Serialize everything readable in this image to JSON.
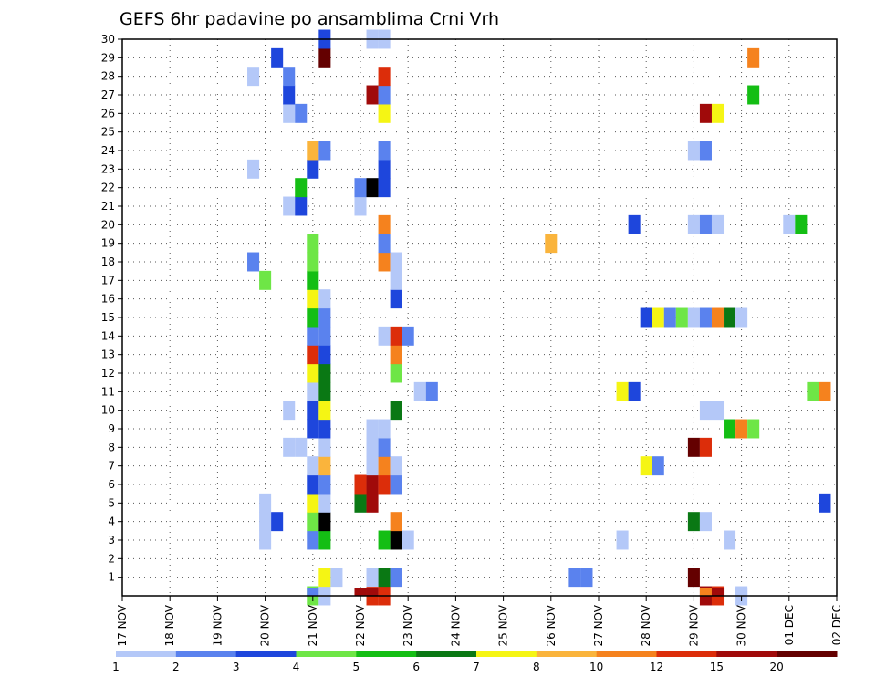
{
  "chart_data": {
    "type": "heatmap",
    "title": "GEFS 6hr padavine po ansamblima Crni Vrh",
    "xlabel": "",
    "ylabel": "",
    "x_tick_labels": [
      "17 NOV",
      "18 NOV",
      "19 NOV",
      "20 NOV",
      "21 NOV",
      "22 NOV",
      "23 NOV",
      "24 NOV",
      "25 NOV",
      "26 NOV",
      "27 NOV",
      "28 NOV",
      "29 NOV",
      "30 NOV",
      "01 DEC",
      "02 DEC"
    ],
    "x_range_days": [
      0,
      15
    ],
    "y_tick_labels": [
      "1",
      "2",
      "3",
      "4",
      "5",
      "6",
      "7",
      "8",
      "9",
      "10",
      "11",
      "12",
      "13",
      "14",
      "15",
      "16",
      "17",
      "18",
      "19",
      "20",
      "21",
      "22",
      "23",
      "24",
      "25",
      "26",
      "27",
      "28",
      "29",
      "30"
    ],
    "y_range": [
      0,
      30
    ],
    "grid": true,
    "step_hours": 6,
    "colorbar": {
      "labels": [
        "1",
        "2",
        "3",
        "4",
        "5",
        "6",
        "7",
        "8",
        "10",
        "12",
        "15",
        "20"
      ],
      "colors": [
        "#b4c8f8",
        "#5a82ee",
        "#1e46dc",
        "#6ee646",
        "#14be14",
        "#0a7814",
        "#f5f514",
        "#fab43c",
        "#f5821e",
        "#dc2d0a",
        "#a00a0a",
        "#640000"
      ]
    },
    "cells": [
      [
        0,
        4.0,
        4
      ],
      [
        0,
        4.25,
        1
      ],
      [
        0,
        5.25,
        10
      ],
      [
        0,
        5.5,
        10
      ],
      [
        0,
        12.25,
        11
      ],
      [
        0,
        12.5,
        10
      ],
      [
        0,
        13.0,
        1
      ],
      [
        1,
        4.25,
        7
      ],
      [
        1,
        4.5,
        1
      ],
      [
        1,
        5.25,
        1
      ],
      [
        1,
        5.5,
        6
      ],
      [
        1,
        5.75,
        2
      ],
      [
        1,
        9.75,
        2
      ],
      [
        1,
        9.5,
        2
      ],
      [
        1,
        12.0,
        12
      ],
      [
        3,
        3.0,
        1
      ],
      [
        3,
        4.0,
        2
      ],
      [
        3,
        4.25,
        5
      ],
      [
        3,
        5.5,
        5
      ],
      [
        3,
        5.75,
        13
      ],
      [
        3,
        6.0,
        1
      ],
      [
        3,
        10.5,
        1
      ],
      [
        3,
        12.75,
        1
      ],
      [
        4,
        3.0,
        1
      ],
      [
        4,
        3.25,
        3
      ],
      [
        4,
        4.0,
        4
      ],
      [
        4,
        4.25,
        13
      ],
      [
        4,
        5.75,
        9
      ],
      [
        4,
        12.0,
        6
      ],
      [
        4,
        12.25,
        1
      ],
      [
        5,
        3.0,
        1
      ],
      [
        5,
        4.0,
        7
      ],
      [
        5,
        4.25,
        1
      ],
      [
        5,
        5.0,
        6
      ],
      [
        5,
        5.25,
        11
      ],
      [
        5,
        14.75,
        3
      ],
      [
        6,
        4.0,
        3
      ],
      [
        6,
        4.25,
        2
      ],
      [
        6,
        5.0,
        10
      ],
      [
        6,
        5.25,
        11
      ],
      [
        6,
        5.5,
        10
      ],
      [
        6,
        5.75,
        2
      ],
      [
        7,
        4.0,
        1
      ],
      [
        7,
        4.25,
        8
      ],
      [
        7,
        5.25,
        1
      ],
      [
        7,
        5.5,
        9
      ],
      [
        7,
        5.75,
        1
      ],
      [
        7,
        11.0,
        7
      ],
      [
        7,
        11.25,
        2
      ],
      [
        8,
        3.5,
        1
      ],
      [
        8,
        3.75,
        1
      ],
      [
        8,
        4.25,
        1
      ],
      [
        8,
        5.25,
        1
      ],
      [
        8,
        5.5,
        2
      ],
      [
        8,
        12.0,
        12
      ],
      [
        8,
        12.25,
        10
      ],
      [
        9,
        4.0,
        3
      ],
      [
        9,
        4.25,
        3
      ],
      [
        9,
        5.25,
        1
      ],
      [
        9,
        5.5,
        1
      ],
      [
        9,
        12.75,
        5
      ],
      [
        9,
        13.0,
        9
      ],
      [
        9,
        13.25,
        4
      ],
      [
        10,
        3.5,
        1
      ],
      [
        10,
        4.0,
        3
      ],
      [
        10,
        4.25,
        7
      ],
      [
        10,
        5.75,
        6
      ],
      [
        10,
        12.25,
        1
      ],
      [
        10,
        12.5,
        1
      ],
      [
        11,
        4.0,
        1
      ],
      [
        11,
        4.25,
        6
      ],
      [
        11,
        6.25,
        1
      ],
      [
        11,
        6.5,
        2
      ],
      [
        11,
        10.5,
        7
      ],
      [
        11,
        10.75,
        3
      ],
      [
        11,
        14.5,
        4
      ],
      [
        11,
        14.75,
        9
      ],
      [
        12,
        4.0,
        7
      ],
      [
        12,
        4.25,
        6
      ],
      [
        12,
        5.75,
        4
      ],
      [
        13,
        4.0,
        10
      ],
      [
        13,
        4.25,
        3
      ],
      [
        13,
        5.75,
        9
      ],
      [
        14,
        4.0,
        2
      ],
      [
        14,
        4.25,
        2
      ],
      [
        14,
        5.5,
        1
      ],
      [
        14,
        5.75,
        10
      ],
      [
        14,
        6.0,
        2
      ],
      [
        15,
        4.0,
        5
      ],
      [
        15,
        4.25,
        2
      ],
      [
        15,
        11.0,
        3
      ],
      [
        15,
        11.25,
        7
      ],
      [
        15,
        11.5,
        2
      ],
      [
        15,
        11.75,
        4
      ],
      [
        15,
        12.0,
        1
      ],
      [
        15,
        12.25,
        2
      ],
      [
        15,
        12.5,
        9
      ],
      [
        15,
        12.75,
        6
      ],
      [
        15,
        13.0,
        1
      ],
      [
        16,
        4.0,
        7
      ],
      [
        16,
        4.25,
        1
      ],
      [
        16,
        5.75,
        3
      ],
      [
        17,
        3.0,
        4
      ],
      [
        17,
        4.0,
        5
      ],
      [
        17,
        5.75,
        1
      ],
      [
        18,
        2.75,
        2
      ],
      [
        18,
        4.0,
        4
      ],
      [
        18,
        5.5,
        9
      ],
      [
        18,
        5.75,
        1
      ],
      [
        19,
        4.0,
        4
      ],
      [
        19,
        5.5,
        2
      ],
      [
        19,
        9.0,
        8
      ],
      [
        20,
        5.5,
        9
      ],
      [
        20,
        10.75,
        3
      ],
      [
        20,
        12.0,
        1
      ],
      [
        20,
        12.25,
        2
      ],
      [
        20,
        12.5,
        1
      ],
      [
        20,
        14.0,
        1
      ],
      [
        20,
        14.25,
        5
      ],
      [
        21,
        3.5,
        1
      ],
      [
        21,
        3.75,
        3
      ],
      [
        21,
        5.0,
        1
      ],
      [
        22,
        3.75,
        5
      ],
      [
        22,
        5.0,
        2
      ],
      [
        22,
        5.25,
        13
      ],
      [
        22,
        5.5,
        3
      ],
      [
        23,
        2.75,
        1
      ],
      [
        23,
        4.0,
        3
      ],
      [
        23,
        5.5,
        3
      ],
      [
        24,
        4.0,
        8
      ],
      [
        24,
        4.25,
        2
      ],
      [
        24,
        5.5,
        2
      ],
      [
        24,
        12.0,
        1
      ],
      [
        24,
        12.25,
        2
      ],
      [
        26,
        3.5,
        1
      ],
      [
        26,
        3.75,
        2
      ],
      [
        26,
        5.5,
        7
      ],
      [
        26,
        12.25,
        11
      ],
      [
        26,
        12.5,
        7
      ],
      [
        27,
        3.5,
        3
      ],
      [
        27,
        5.25,
        11
      ],
      [
        27,
        5.5,
        2
      ],
      [
        27,
        13.25,
        5
      ],
      [
        28,
        2.75,
        1
      ],
      [
        28,
        3.5,
        2
      ],
      [
        28,
        5.5,
        10
      ],
      [
        29,
        3.25,
        3
      ],
      [
        29,
        4.25,
        12
      ],
      [
        29,
        13.25,
        9
      ],
      [
        30,
        4.25,
        3
      ],
      [
        30,
        5.25,
        1
      ],
      [
        30,
        5.5,
        1
      ]
    ],
    "bottom_row_cells": [
      [
        4.0,
        2
      ],
      [
        4.25,
        1
      ],
      [
        5.0,
        11
      ],
      [
        5.25,
        11
      ],
      [
        12.25,
        9
      ],
      [
        12.5,
        11
      ],
      [
        13.0,
        1
      ]
    ]
  }
}
